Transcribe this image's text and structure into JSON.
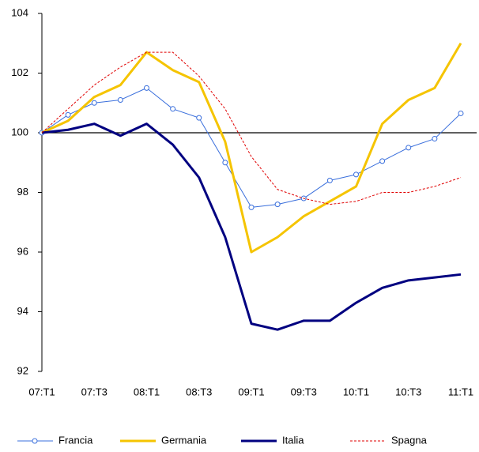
{
  "chart_data": {
    "type": "line",
    "categories": [
      "07:T1",
      null,
      "07:T3",
      null,
      "08:T1",
      null,
      "08:T3",
      null,
      "09:T1",
      null,
      "09:T3",
      null,
      "10:T1",
      null,
      "10:T3",
      null,
      "11:T1"
    ],
    "series": [
      {
        "name": "Francia",
        "color": "#3a6fdc",
        "width": 1,
        "marker": "circle",
        "dash": false,
        "values": [
          100,
          100.6,
          101.0,
          101.1,
          101.5,
          100.8,
          100.5,
          99.0,
          97.5,
          97.6,
          97.8,
          98.4,
          98.6,
          99.05,
          99.5,
          99.8,
          100.65
        ]
      },
      {
        "name": "Germania",
        "color": "#f5c400",
        "width": 3,
        "marker": "none",
        "dash": false,
        "values": [
          100,
          100.4,
          101.2,
          101.6,
          102.7,
          102.1,
          101.7,
          99.7,
          96.0,
          96.5,
          97.2,
          97.7,
          98.2,
          100.3,
          101.1,
          101.5,
          103.0
        ]
      },
      {
        "name": "Italia",
        "color": "#000080",
        "width": 3,
        "marker": "none",
        "dash": false,
        "values": [
          100,
          100.1,
          100.3,
          99.9,
          100.3,
          99.6,
          98.5,
          96.5,
          93.6,
          93.4,
          93.7,
          93.7,
          94.3,
          94.8,
          95.05,
          95.15,
          95.25
        ]
      },
      {
        "name": "Spagna",
        "color": "#e00000",
        "width": 1,
        "marker": "none",
        "dash": true,
        "values": [
          100,
          100.8,
          101.6,
          102.2,
          102.7,
          102.7,
          101.9,
          100.8,
          99.2,
          98.1,
          97.8,
          97.6,
          97.7,
          98.0,
          98.0,
          98.2,
          98.5
        ]
      }
    ],
    "ylim": [
      92,
      104
    ],
    "yticks": [
      92,
      94,
      96,
      98,
      100,
      102,
      104
    ],
    "reference_line": 100,
    "grid": false,
    "legend": "bottom"
  }
}
